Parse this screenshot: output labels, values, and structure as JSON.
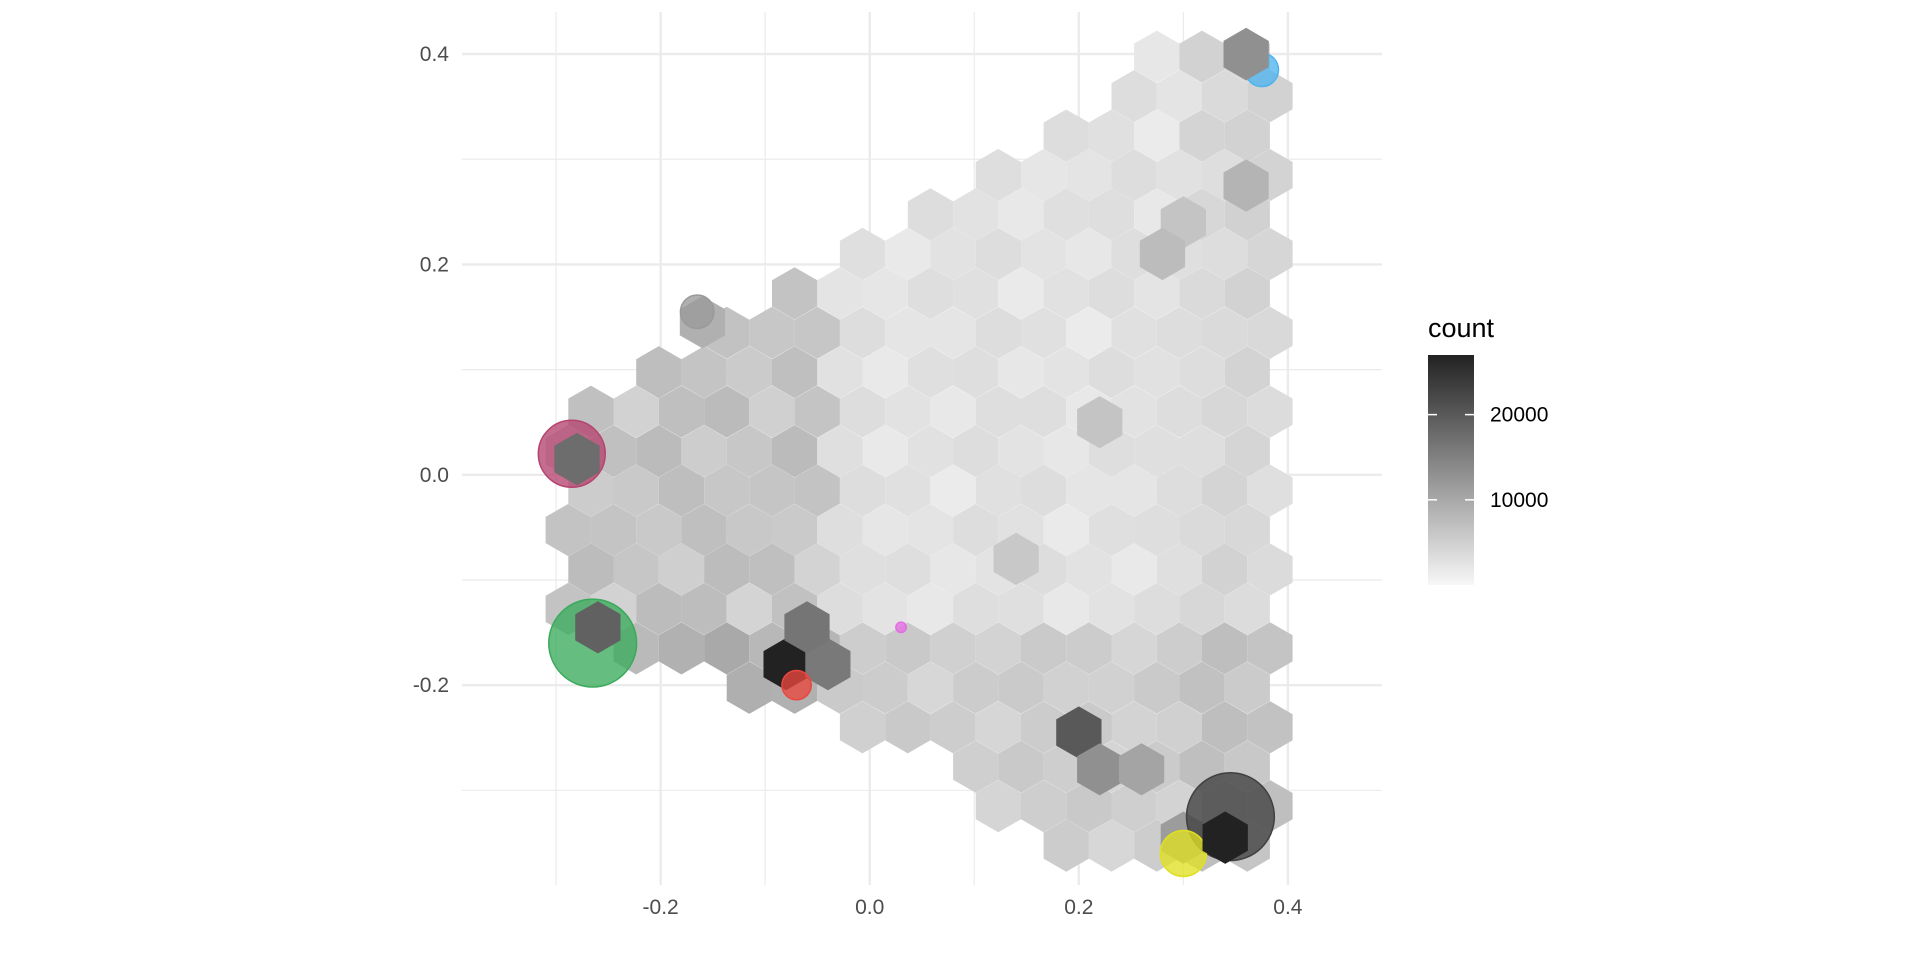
{
  "chart_data": {
    "type": "heatmap",
    "subtype": "hexbin",
    "title": "",
    "xlabel": "",
    "ylabel": "",
    "xlim": [
      -0.39,
      0.49
    ],
    "ylim": [
      -0.39,
      0.44
    ],
    "x_ticks": [
      -0.2,
      0.0,
      0.2,
      0.4
    ],
    "x_tick_labels": [
      "-0.2",
      "0.0",
      "0.2",
      "0.4"
    ],
    "y_ticks": [
      -0.2,
      0.0,
      0.2,
      0.4
    ],
    "y_tick_labels": [
      "-0.2",
      "0.0",
      "0.2",
      "0.4"
    ],
    "grid": true,
    "legend": {
      "title": "count",
      "placement": "right",
      "breaks": [
        20000,
        10000
      ],
      "break_labels": [
        "20000",
        "10000"
      ],
      "range": [
        0,
        27000
      ],
      "color_low": "#f7f7f7",
      "color_high": "#222222"
    },
    "hex_size": 0.025,
    "hex_grid": {
      "x0": -0.3,
      "y0": -0.36
    },
    "hex_rows": [
      {
        "row": 0,
        "cols": [
          0,
          1,
          2,
          3,
          4,
          5,
          6,
          7,
          8,
          9,
          10,
          11,
          12,
          13
        ],
        "counts": [
          1800,
          4400,
          3600,
          3000,
          4600,
          2600,
          2000,
          1800,
          2200,
          2000,
          2400,
          2600,
          3000,
          3600
        ]
      },
      {
        "row": 1,
        "cols": [
          0,
          1,
          2,
          3,
          4,
          5,
          6,
          7,
          8,
          9,
          10,
          11,
          12,
          13
        ],
        "counts": [
          2000,
          3000,
          3800,
          2800,
          2600,
          2200,
          1800,
          1600,
          2000,
          1800,
          2200,
          2400,
          3200,
          4000
        ]
      },
      {
        "row": 2,
        "cols": [
          0,
          1,
          2,
          3,
          4,
          5,
          6,
          7,
          8,
          9,
          10,
          11,
          12,
          13
        ],
        "counts": [
          3000,
          2800,
          3600,
          3800,
          4200,
          2600,
          2400,
          1800,
          2200,
          2200,
          2600,
          2000,
          2800,
          7000
        ]
      },
      {
        "row": 3,
        "cols": [
          0,
          1,
          2,
          3,
          4,
          5,
          6,
          7,
          8,
          9,
          10,
          11,
          12,
          13
        ],
        "counts": [
          3200,
          4600,
          4000,
          5600,
          4400,
          3000,
          2200,
          1900,
          1600,
          1800,
          2000,
          2400,
          2600,
          3200
        ]
      },
      {
        "row": 4,
        "cols": [
          0,
          1,
          2,
          3,
          4,
          5,
          6,
          7,
          8,
          9,
          10,
          11,
          12,
          13
        ],
        "counts": [
          6800,
          5400,
          4800,
          6600,
          5200,
          2800,
          2000,
          1700,
          1800,
          2400,
          2600,
          2400,
          3000,
          2800
        ]
      },
      {
        "row": 5,
        "cols": [
          0,
          1,
          2,
          3,
          4,
          5,
          6,
          7,
          8,
          9,
          10,
          11,
          12,
          13
        ],
        "counts": [
          4000,
          4800,
          5600,
          4600,
          3400,
          2600,
          2000,
          1800,
          2400,
          2800,
          6000,
          2200,
          2400,
          3400
        ]
      },
      {
        "row": 6,
        "cols": [
          0,
          1,
          2,
          3,
          4,
          5,
          6,
          7,
          8,
          9,
          10,
          11,
          12,
          13
        ],
        "counts": [
          2800,
          3400,
          4000,
          6200,
          4000,
          2400,
          2200,
          1700,
          2200,
          2000,
          3200,
          2600,
          3000,
          2600
        ]
      },
      {
        "row": 7,
        "cols": [
          0,
          1,
          2,
          3,
          4,
          5,
          6,
          7,
          8,
          9,
          10,
          11,
          12,
          13
        ],
        "counts": [
          6800,
          5200,
          3600,
          3000,
          2400,
          2000,
          1700,
          1800,
          2600,
          2200,
          3000,
          5600,
          3400,
          2200
        ]
      },
      {
        "row": 8,
        "cols": [
          0,
          1,
          2,
          3,
          4,
          5,
          6,
          7,
          8,
          9,
          10,
          11,
          12,
          13
        ],
        "counts": [
          3400,
          4200,
          3200,
          2800,
          2300,
          2100,
          1800,
          1900,
          2400,
          2100,
          2800,
          3400,
          2400,
          2600
        ]
      },
      {
        "row": 9,
        "cols": [
          0,
          1,
          2,
          3,
          4,
          5,
          6,
          7,
          8,
          9,
          10,
          11,
          12,
          13
        ],
        "counts": [
          5400,
          3600,
          3000,
          2600,
          2200,
          1700,
          1900,
          2000,
          2300,
          2200,
          4600,
          2600,
          3200,
          2400
        ]
      }
    ],
    "hexes": [
      {
        "x": -0.28,
        "y": 0.015,
        "count": 17500
      },
      {
        "x": -0.26,
        "y": -0.145,
        "count": 19000
      },
      {
        "x": -0.16,
        "y": 0.145,
        "count": 9000
      },
      {
        "x": -0.08,
        "y": -0.18,
        "count": 27000
      },
      {
        "x": -0.04,
        "y": -0.18,
        "count": 16000
      },
      {
        "x": -0.06,
        "y": -0.145,
        "count": 16500
      },
      {
        "x": 0.2,
        "y": -0.245,
        "count": 20000
      },
      {
        "x": 0.22,
        "y": -0.28,
        "count": 13000
      },
      {
        "x": 0.26,
        "y": -0.28,
        "count": 10500
      },
      {
        "x": 0.34,
        "y": -0.345,
        "count": 27000
      },
      {
        "x": 0.3,
        "y": -0.345,
        "count": 11500
      },
      {
        "x": 0.36,
        "y": 0.4,
        "count": 13000
      },
      {
        "x": 0.36,
        "y": 0.275,
        "count": 8500
      },
      {
        "x": 0.3,
        "y": 0.24,
        "count": 6500
      },
      {
        "x": 0.28,
        "y": 0.21,
        "count": 7500
      },
      {
        "x": 0.22,
        "y": 0.05,
        "count": 6500
      },
      {
        "x": 0.14,
        "y": -0.08,
        "count": 6000
      }
    ],
    "points": [
      {
        "x": -0.285,
        "y": 0.02,
        "size": 0.032,
        "color": "#b5446e"
      },
      {
        "x": -0.265,
        "y": -0.16,
        "size": 0.042,
        "color": "#3aaa5c"
      },
      {
        "x": -0.165,
        "y": 0.155,
        "size": 0.016,
        "color": "#9a9a9a"
      },
      {
        "x": -0.07,
        "y": -0.2,
        "size": 0.014,
        "color": "#e9463e"
      },
      {
        "x": 0.03,
        "y": -0.145,
        "size": 0.005,
        "color": "#e46ee4"
      },
      {
        "x": 0.345,
        "y": -0.325,
        "size": 0.042,
        "color": "#404040"
      },
      {
        "x": 0.3,
        "y": -0.36,
        "size": 0.022,
        "color": "#dfe022"
      },
      {
        "x": 0.375,
        "y": 0.385,
        "size": 0.016,
        "color": "#4fb3ee"
      }
    ]
  }
}
